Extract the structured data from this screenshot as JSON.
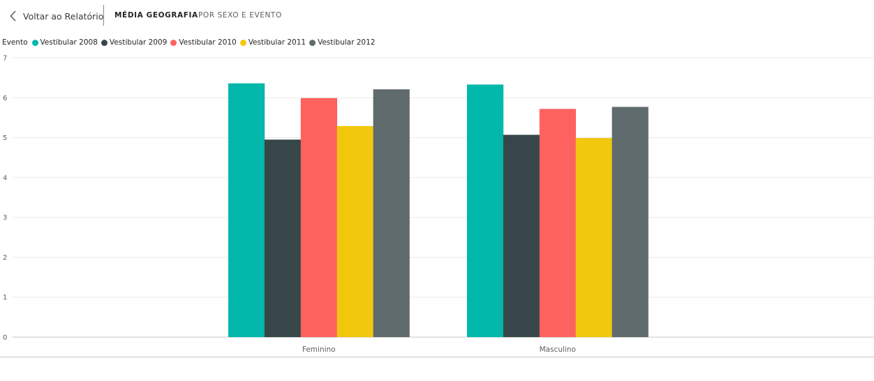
{
  "header": {
    "back_label": "Voltar ao Relatório",
    "tabs": [
      {
        "label": "MÉDIA GEOGRAFIA",
        "active": true
      },
      {
        "label": "POR SEXO E EVENTO",
        "active": false
      }
    ]
  },
  "icons": {
    "back": "chevron-left-icon"
  },
  "chart_data": {
    "type": "bar",
    "title": "",
    "legend_title": "Evento",
    "legend_position": "top-left",
    "xlabel": "",
    "ylabel": "",
    "ylim": [
      0,
      7
    ],
    "yticks": [
      "0",
      "1",
      "2",
      "3",
      "4",
      "5",
      "6",
      "7"
    ],
    "grid": true,
    "categories": [
      "Feminino",
      "Masculino"
    ],
    "series": [
      {
        "name": "Vestibular 2008",
        "color": "#01B8AA",
        "values": [
          6.36,
          6.33
        ]
      },
      {
        "name": "Vestibular 2009",
        "color": "#374649",
        "values": [
          4.95,
          5.07
        ]
      },
      {
        "name": "Vestibular 2010",
        "color": "#FD625E",
        "values": [
          5.99,
          5.72
        ]
      },
      {
        "name": "Vestibular 2011",
        "color": "#F2C80F",
        "values": [
          5.29,
          4.99
        ]
      },
      {
        "name": "Vestibular 2012",
        "color": "#5F6B6D",
        "values": [
          6.21,
          5.77
        ]
      }
    ]
  }
}
